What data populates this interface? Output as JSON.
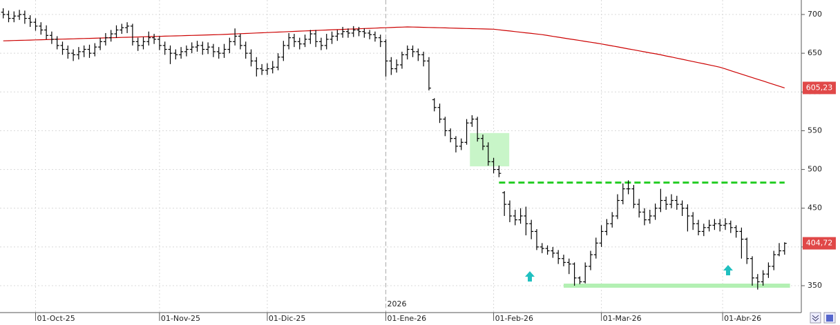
{
  "chart_data": {
    "type": "ohlc",
    "ylim": [
      315.3,
      718.7
    ],
    "yticks": [
      350,
      400,
      450,
      500,
      550,
      600,
      650,
      700
    ],
    "xlim": [
      -0.6,
      148.1
    ],
    "xticks": [
      {
        "value": 6,
        "label": "01-Oct-25"
      },
      {
        "value": 29,
        "label": "01-Nov-25"
      },
      {
        "value": 49,
        "label": "01-Dic-25"
      },
      {
        "value": 71,
        "label": "01-Ene-26"
      },
      {
        "value": 91,
        "label": "01-Feb-26"
      },
      {
        "value": 111,
        "label": "01-Mar-26"
      },
      {
        "value": 133.5,
        "label": "01-Abr-26"
      }
    ],
    "year_marker": {
      "value": 71,
      "label": "2026"
    },
    "grid": true,
    "open": [
      703,
      700,
      695,
      698,
      700,
      695,
      690,
      685,
      680,
      673,
      668,
      660,
      655,
      650,
      648,
      652,
      655,
      650,
      658,
      665,
      670,
      675,
      680,
      683,
      685,
      665,
      660,
      665,
      670,
      668,
      660,
      655,
      650,
      648,
      652,
      655,
      658,
      660,
      655,
      658,
      652,
      650,
      655,
      665,
      672,
      660,
      650,
      640,
      630,
      628,
      630,
      632,
      645,
      660,
      670,
      665,
      662,
      668,
      675,
      665,
      660,
      668,
      672,
      675,
      678,
      676,
      680,
      678,
      676,
      674,
      670,
      665,
      640,
      630,
      635,
      648,
      655,
      652,
      648,
      640,
      590,
      580,
      565,
      550,
      540,
      530,
      535,
      560,
      565,
      540,
      530,
      510,
      500,
      470,
      455,
      440,
      435,
      440,
      430,
      420,
      400,
      398,
      395,
      392,
      385,
      380,
      378,
      360,
      355,
      375,
      390,
      405,
      420,
      430,
      440,
      460,
      475,
      475,
      455,
      445,
      435,
      440,
      450,
      460,
      455,
      460,
      455,
      450,
      440,
      430,
      420,
      425,
      428,
      430,
      428,
      430,
      425,
      420,
      410,
      385,
      360,
      355,
      365,
      375,
      390,
      395
    ],
    "high": [
      708,
      705,
      704,
      706,
      705,
      699,
      695,
      690,
      686,
      678,
      672,
      665,
      660,
      655,
      658,
      660,
      661,
      663,
      670,
      676,
      680,
      686,
      688,
      690,
      688,
      670,
      671,
      678,
      675,
      672,
      665,
      660,
      655,
      658,
      660,
      664,
      666,
      665,
      664,
      662,
      658,
      662,
      670,
      682,
      675,
      665,
      655,
      645,
      636,
      637,
      640,
      650,
      666,
      676,
      675,
      670,
      674,
      680,
      680,
      670,
      675,
      678,
      680,
      684,
      682,
      685,
      684,
      682,
      680,
      678,
      674,
      668,
      645,
      642,
      652,
      660,
      660,
      656,
      652,
      645,
      592,
      585,
      568,
      553,
      543,
      540,
      565,
      570,
      568,
      545,
      535,
      515,
      505,
      472,
      460,
      448,
      450,
      452,
      435,
      423,
      405,
      402,
      400,
      396,
      390,
      385,
      380,
      362,
      380,
      395,
      412,
      428,
      436,
      445,
      468,
      482,
      486,
      480,
      462,
      450,
      448,
      456,
      475,
      465,
      468,
      466,
      460,
      455,
      445,
      435,
      430,
      435,
      436,
      436,
      437,
      434,
      428,
      425,
      412,
      388,
      365,
      370,
      380,
      395,
      405,
      406
    ],
    "low": [
      695,
      690,
      690,
      693,
      688,
      684,
      679,
      674,
      668,
      662,
      655,
      648,
      643,
      640,
      642,
      645,
      644,
      646,
      654,
      660,
      665,
      670,
      675,
      676,
      660,
      653,
      655,
      660,
      662,
      654,
      648,
      636,
      642,
      643,
      646,
      650,
      652,
      648,
      649,
      645,
      643,
      644,
      650,
      660,
      655,
      643,
      633,
      620,
      622,
      622,
      624,
      628,
      640,
      655,
      658,
      655,
      658,
      662,
      658,
      654,
      655,
      662,
      666,
      670,
      670,
      671,
      672,
      670,
      668,
      665,
      658,
      620,
      622,
      625,
      630,
      642,
      645,
      640,
      633,
      602,
      575,
      560,
      543,
      535,
      522,
      525,
      532,
      555,
      536,
      525,
      505,
      495,
      490,
      440,
      432,
      428,
      430,
      415,
      410,
      396,
      392,
      390,
      386,
      378,
      375,
      365,
      350,
      352,
      353,
      370,
      385,
      400,
      415,
      425,
      436,
      455,
      468,
      450,
      438,
      428,
      430,
      435,
      445,
      448,
      450,
      448,
      440,
      420,
      422,
      415,
      414,
      420,
      422,
      420,
      422,
      418,
      412,
      385,
      378,
      350,
      345,
      350,
      360,
      370,
      388,
      390
    ],
    "close": [
      700,
      695,
      698,
      700,
      695,
      690,
      685,
      680,
      673,
      668,
      660,
      655,
      650,
      648,
      652,
      655,
      650,
      658,
      665,
      670,
      675,
      680,
      683,
      685,
      665,
      660,
      665,
      670,
      668,
      660,
      655,
      650,
      648,
      652,
      655,
      658,
      660,
      655,
      658,
      652,
      650,
      655,
      665,
      672,
      660,
      650,
      640,
      630,
      628,
      630,
      632,
      645,
      660,
      670,
      665,
      662,
      668,
      675,
      665,
      660,
      668,
      672,
      675,
      678,
      676,
      680,
      678,
      676,
      674,
      670,
      665,
      640,
      630,
      635,
      648,
      655,
      652,
      648,
      640,
      605,
      580,
      565,
      550,
      540,
      530,
      535,
      560,
      565,
      540,
      530,
      510,
      500,
      495,
      455,
      440,
      435,
      440,
      430,
      420,
      400,
      398,
      395,
      392,
      385,
      380,
      378,
      360,
      355,
      375,
      390,
      405,
      420,
      430,
      440,
      460,
      475,
      475,
      455,
      445,
      435,
      440,
      450,
      460,
      455,
      460,
      455,
      450,
      440,
      430,
      420,
      425,
      428,
      430,
      428,
      430,
      425,
      420,
      410,
      385,
      360,
      355,
      365,
      375,
      390,
      395,
      404.72
    ],
    "bar_color": "#000000",
    "last_close_label": "404,72",
    "series": [
      {
        "color": "#cc0000",
        "last_label": "605,23",
        "values": [
          666.0,
          666.2,
          666.4,
          666.6,
          666.8,
          667.0,
          667.2,
          667.4,
          667.6,
          667.8,
          668.0,
          668.2,
          668.4,
          668.6,
          668.8,
          669.0,
          669.2,
          669.4,
          669.6,
          669.8,
          670.0,
          670.2,
          670.4,
          670.6,
          670.8,
          671.0,
          671.2,
          671.4,
          671.6,
          671.8,
          672.0,
          672.2,
          672.4,
          672.6,
          672.8,
          673.0,
          673.2,
          673.4,
          673.6,
          673.8,
          674.0,
          674.3,
          674.6,
          674.9,
          675.2,
          675.5,
          675.8,
          676.1,
          676.4,
          676.7,
          677.0,
          677.3,
          677.6,
          677.9,
          678.2,
          678.5,
          678.8,
          679.1,
          679.4,
          679.7,
          680.0,
          680.3,
          680.5,
          680.8,
          681.1,
          681.3,
          681.6,
          681.9,
          682.1,
          682.4,
          682.7,
          682.9,
          683.2,
          683.5,
          683.7,
          684.0,
          683.8,
          683.6,
          683.4,
          683.3,
          683.1,
          682.9,
          682.7,
          682.5,
          682.3,
          682.1,
          681.9,
          681.7,
          681.6,
          681.4,
          681.2,
          681.0,
          680.2,
          679.4,
          678.7,
          677.9,
          677.1,
          676.3,
          675.6,
          674.8,
          674.0,
          672.9,
          671.8,
          670.7,
          669.6,
          668.5,
          667.5,
          666.4,
          665.3,
          664.2,
          663.1,
          662.0,
          660.7,
          659.5,
          658.2,
          656.9,
          655.6,
          654.4,
          653.1,
          651.8,
          650.5,
          649.3,
          648.0,
          646.5,
          645.1,
          643.6,
          642.2,
          640.7,
          639.3,
          637.8,
          636.4,
          634.9,
          633.5,
          632.0,
          629.8,
          627.5,
          625.3,
          623.1,
          620.8,
          618.6,
          616.4,
          614.2,
          611.9,
          609.7,
          607.5,
          605.23
        ]
      }
    ],
    "resistance": {
      "value": 483,
      "from": 92,
      "to": 145,
      "color": "#22cc22"
    },
    "support": {
      "value": 350,
      "from": 104,
      "to": 146,
      "color": "#b3f0b3"
    },
    "zone": {
      "low": 504,
      "high": 547,
      "from": 86.6,
      "to": 93.9,
      "color": "#c8f5c8"
    }
  }
}
